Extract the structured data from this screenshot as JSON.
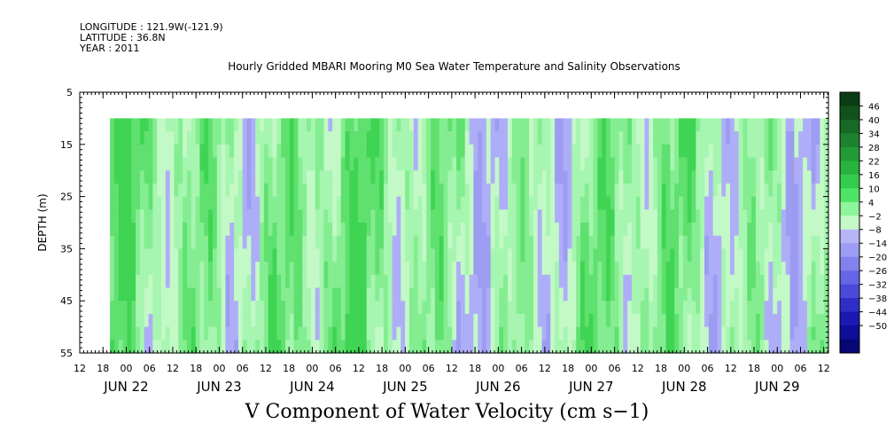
{
  "header": {
    "longitude": "LONGITUDE : 121.9W(-121.9)",
    "latitude": "LATITUDE : 36.8N",
    "year": "YEAR : 2011"
  },
  "chart_data": {
    "type": "heatmap",
    "title": "Hourly Gridded MBARI Mooring M0 Sea Water Temperature and Salinity Observations",
    "variable_label": "V Component of Water Velocity (cm s−1)",
    "ylabel": "DEPTH (m)",
    "y_axis": {
      "range": [
        5,
        55
      ],
      "inverted": true,
      "ticks": [
        "5",
        "15",
        "25",
        "35",
        "45",
        "55"
      ]
    },
    "data_depth_range": [
      10,
      55
    ],
    "x_axis": {
      "hour_ticks": [
        "12",
        "18",
        "00",
        "06",
        "12",
        "18",
        "00",
        "06",
        "12",
        "18",
        "00",
        "06",
        "12",
        "18",
        "00",
        "06",
        "12",
        "18",
        "00",
        "06",
        "12",
        "18",
        "00",
        "06",
        "12",
        "18",
        "00",
        "06",
        "12",
        "18",
        "00",
        "06",
        "12"
      ],
      "day_labels": [
        "JUN 22",
        "JUN 23",
        "JUN 24",
        "JUN 25",
        "JUN 26",
        "JUN 27",
        "JUN 28",
        "JUN 29"
      ]
    },
    "colorbar": {
      "labels": [
        "46",
        "40",
        "34",
        "28",
        "22",
        "16",
        "10",
        "4",
        "−2",
        "−8",
        "−14",
        "−20",
        "−26",
        "−32",
        "−38",
        "−44",
        "−50"
      ],
      "colors": [
        "#0b3d14",
        "#11521c",
        "#176a25",
        "#1d822d",
        "#229a36",
        "#28b23e",
        "#34cc4c",
        "#4ee465",
        "#8ff59a",
        "#c3f9c6",
        "#b6b6f7",
        "#9d9df5",
        "#8282ef",
        "#6565e6",
        "#4a4ad9",
        "#2f2fc8",
        "#1a1ab3",
        "#0e0e99",
        "#060675"
      ]
    },
    "field": {
      "dominant_range": [
        -14,
        22
      ],
      "palette": [
        "#9c9cf2",
        "#aeaef8",
        "#c3f9c6",
        "#a6f5b0",
        "#84ed91",
        "#5fe06f",
        "#3fd453"
      ]
    }
  }
}
